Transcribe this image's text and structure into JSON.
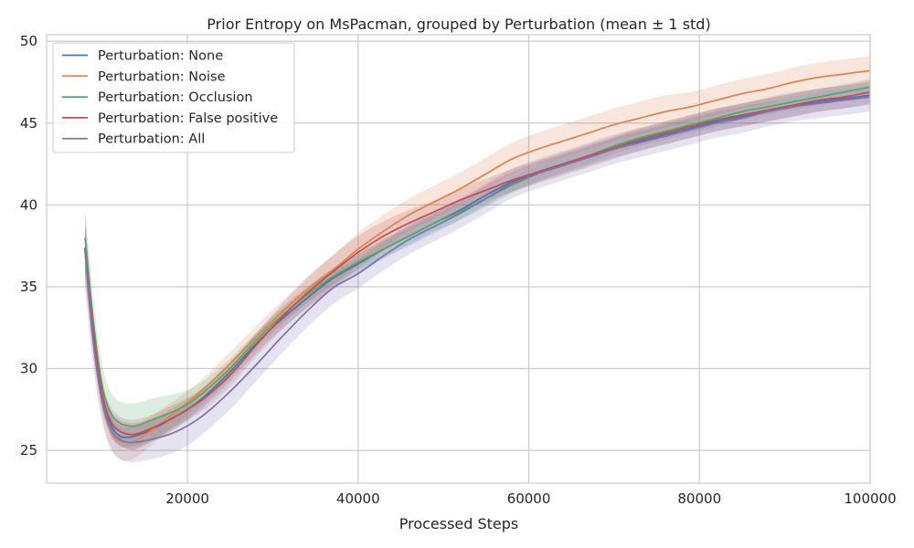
{
  "chart_data": {
    "type": "line",
    "title": "Prior Entropy on MsPacman, grouped by Perturbation (mean ± 1 std)",
    "xlabel": "Processed Steps",
    "ylabel": "",
    "xlim": [
      3500,
      100000
    ],
    "ylim": [
      23.0,
      50.4
    ],
    "xticks": [
      20000,
      40000,
      60000,
      80000,
      100000
    ],
    "yticks": [
      25,
      30,
      35,
      40,
      45,
      50
    ],
    "grid": true,
    "legend_position": "top-left",
    "series": [
      {
        "name": "Perturbation: None",
        "color": "#4c72b0",
        "x": [
          8000,
          9000,
          10000,
          11000,
          12000,
          13000,
          14000,
          16000,
          18000,
          20000,
          22000,
          25000,
          28000,
          31000,
          34000,
          37000,
          40000,
          43000,
          46000,
          49000,
          52000,
          55000,
          58000,
          61000,
          64000,
          67000,
          70000,
          73000,
          76000,
          79000,
          82000,
          85000,
          88000,
          91000,
          94000,
          97000,
          100000
        ],
        "y": [
          37.4,
          32.0,
          28.5,
          26.6,
          25.9,
          25.8,
          25.9,
          26.3,
          26.9,
          27.5,
          28.3,
          29.8,
          31.5,
          33.0,
          34.3,
          35.5,
          36.4,
          37.3,
          38.1,
          38.9,
          39.7,
          40.6,
          41.4,
          42.0,
          42.5,
          43.0,
          43.5,
          43.9,
          44.3,
          44.7,
          45.1,
          45.4,
          45.7,
          46.0,
          46.3,
          46.5,
          46.7
        ],
        "std": [
          1.5,
          1.0,
          0.7,
          0.6,
          0.6,
          0.6,
          0.6,
          0.6,
          0.6,
          0.6,
          0.6,
          0.6,
          0.6,
          0.6,
          0.6,
          0.6,
          0.6,
          0.6,
          0.6,
          0.6,
          0.6,
          0.6,
          0.6,
          0.6,
          0.6,
          0.6,
          0.6,
          0.6,
          0.6,
          0.6,
          0.6,
          0.6,
          0.6,
          0.6,
          0.6,
          0.6,
          0.6
        ]
      },
      {
        "name": "Perturbation: Noise",
        "color": "#dd8452",
        "x": [
          8000,
          9000,
          10000,
          11000,
          12000,
          13000,
          14000,
          16000,
          18000,
          20000,
          22000,
          25000,
          28000,
          31000,
          34000,
          37000,
          40000,
          43000,
          46000,
          49000,
          52000,
          55000,
          58000,
          61000,
          64000,
          67000,
          70000,
          73000,
          76000,
          79000,
          82000,
          85000,
          88000,
          91000,
          94000,
          97000,
          100000
        ],
        "y": [
          37.2,
          31.8,
          28.0,
          26.2,
          25.6,
          25.5,
          25.6,
          26.3,
          27.1,
          27.9,
          28.8,
          30.3,
          31.9,
          33.4,
          34.8,
          36.0,
          37.3,
          38.4,
          39.4,
          40.2,
          41.0,
          41.9,
          42.8,
          43.4,
          43.9,
          44.4,
          44.9,
          45.3,
          45.7,
          46.0,
          46.4,
          46.8,
          47.1,
          47.5,
          47.8,
          48.0,
          48.2
        ],
        "std": [
          1.8,
          1.3,
          1.0,
          1.0,
          1.1,
          1.1,
          1.0,
          0.9,
          0.8,
          0.7,
          0.7,
          0.7,
          0.7,
          0.7,
          0.8,
          0.9,
          1.0,
          1.0,
          1.0,
          1.0,
          1.0,
          1.0,
          1.0,
          1.0,
          1.0,
          1.0,
          1.0,
          1.0,
          1.0,
          0.9,
          0.9,
          0.9,
          0.9,
          0.9,
          0.9,
          0.9,
          0.9
        ]
      },
      {
        "name": "Perturbation: Occlusion",
        "color": "#55a868",
        "x": [
          8000,
          9000,
          10000,
          11000,
          12000,
          13000,
          14000,
          16000,
          18000,
          20000,
          22000,
          25000,
          28000,
          31000,
          34000,
          37000,
          40000,
          43000,
          46000,
          49000,
          52000,
          55000,
          58000,
          61000,
          64000,
          67000,
          70000,
          73000,
          76000,
          79000,
          82000,
          85000,
          88000,
          91000,
          94000,
          97000,
          100000
        ],
        "y": [
          38.0,
          32.8,
          29.0,
          27.3,
          26.7,
          26.5,
          26.5,
          26.9,
          27.3,
          27.8,
          28.6,
          30.0,
          31.7,
          33.2,
          34.5,
          35.6,
          36.5,
          37.3,
          38.1,
          38.9,
          39.6,
          40.4,
          41.2,
          41.9,
          42.5,
          43.0,
          43.6,
          44.1,
          44.5,
          44.9,
          45.3,
          45.7,
          46.0,
          46.3,
          46.6,
          46.9,
          47.2
        ],
        "std": [
          1.8,
          1.4,
          1.3,
          1.3,
          1.3,
          1.4,
          1.4,
          1.3,
          1.1,
          0.9,
          0.7,
          0.6,
          0.5,
          0.5,
          0.5,
          0.5,
          0.5,
          0.5,
          0.5,
          0.5,
          0.5,
          0.5,
          0.5,
          0.5,
          0.5,
          0.5,
          0.5,
          0.5,
          0.5,
          0.5,
          0.5,
          0.5,
          0.5,
          0.5,
          0.5,
          0.5,
          0.5
        ]
      },
      {
        "name": "Perturbation: False positive",
        "color": "#c44e52",
        "x": [
          8000,
          9000,
          10000,
          11000,
          12000,
          13000,
          14000,
          16000,
          18000,
          20000,
          22000,
          25000,
          28000,
          31000,
          34000,
          37000,
          40000,
          43000,
          46000,
          49000,
          52000,
          55000,
          58000,
          61000,
          64000,
          67000,
          70000,
          73000,
          76000,
          79000,
          82000,
          85000,
          88000,
          91000,
          94000,
          97000,
          100000
        ],
        "y": [
          37.3,
          32.2,
          28.5,
          26.8,
          26.2,
          26.0,
          26.0,
          26.4,
          26.9,
          27.5,
          28.2,
          29.6,
          31.4,
          33.1,
          34.6,
          35.9,
          37.1,
          38.1,
          38.9,
          39.6,
          40.3,
          40.9,
          41.5,
          42.0,
          42.5,
          43.0,
          43.5,
          44.0,
          44.4,
          44.8,
          45.2,
          45.5,
          45.8,
          46.1,
          46.4,
          46.6,
          46.9
        ],
        "std": [
          1.5,
          1.1,
          0.9,
          0.9,
          0.9,
          0.9,
          0.9,
          0.8,
          0.8,
          0.7,
          0.7,
          0.7,
          0.7,
          0.8,
          0.9,
          1.0,
          1.0,
          0.9,
          0.8,
          0.7,
          0.7,
          0.7,
          0.7,
          0.7,
          0.7,
          0.7,
          0.7,
          0.7,
          0.7,
          0.7,
          0.7,
          0.7,
          0.7,
          0.7,
          0.7,
          0.7,
          0.7
        ]
      },
      {
        "name": "Perturbation: All",
        "color": "#8172b3",
        "x": [
          8000,
          9000,
          10000,
          11000,
          12000,
          13000,
          14000,
          16000,
          18000,
          20000,
          22000,
          25000,
          28000,
          31000,
          34000,
          37000,
          40000,
          43000,
          46000,
          49000,
          52000,
          55000,
          58000,
          61000,
          64000,
          67000,
          70000,
          73000,
          76000,
          79000,
          82000,
          85000,
          88000,
          91000,
          94000,
          97000,
          100000
        ],
        "y": [
          37.2,
          31.5,
          28.0,
          26.3,
          25.7,
          25.5,
          25.5,
          25.7,
          26.0,
          26.5,
          27.2,
          28.6,
          30.2,
          31.9,
          33.5,
          34.9,
          35.8,
          36.9,
          37.9,
          38.7,
          39.5,
          40.4,
          41.3,
          41.9,
          42.4,
          42.9,
          43.4,
          43.8,
          44.2,
          44.6,
          45.0,
          45.3,
          45.7,
          46.0,
          46.2,
          46.4,
          46.6
        ],
        "std": [
          2.3,
          1.5,
          1.2,
          1.2,
          1.2,
          1.2,
          1.2,
          1.2,
          1.2,
          1.2,
          1.1,
          1.1,
          1.0,
          1.0,
          1.0,
          1.0,
          0.9,
          0.9,
          0.9,
          0.9,
          0.9,
          0.9,
          0.9,
          0.9,
          0.9,
          0.9,
          0.9,
          0.9,
          0.9,
          0.9,
          0.9,
          0.9,
          0.9,
          0.9,
          0.9,
          0.9,
          0.9
        ]
      }
    ]
  }
}
